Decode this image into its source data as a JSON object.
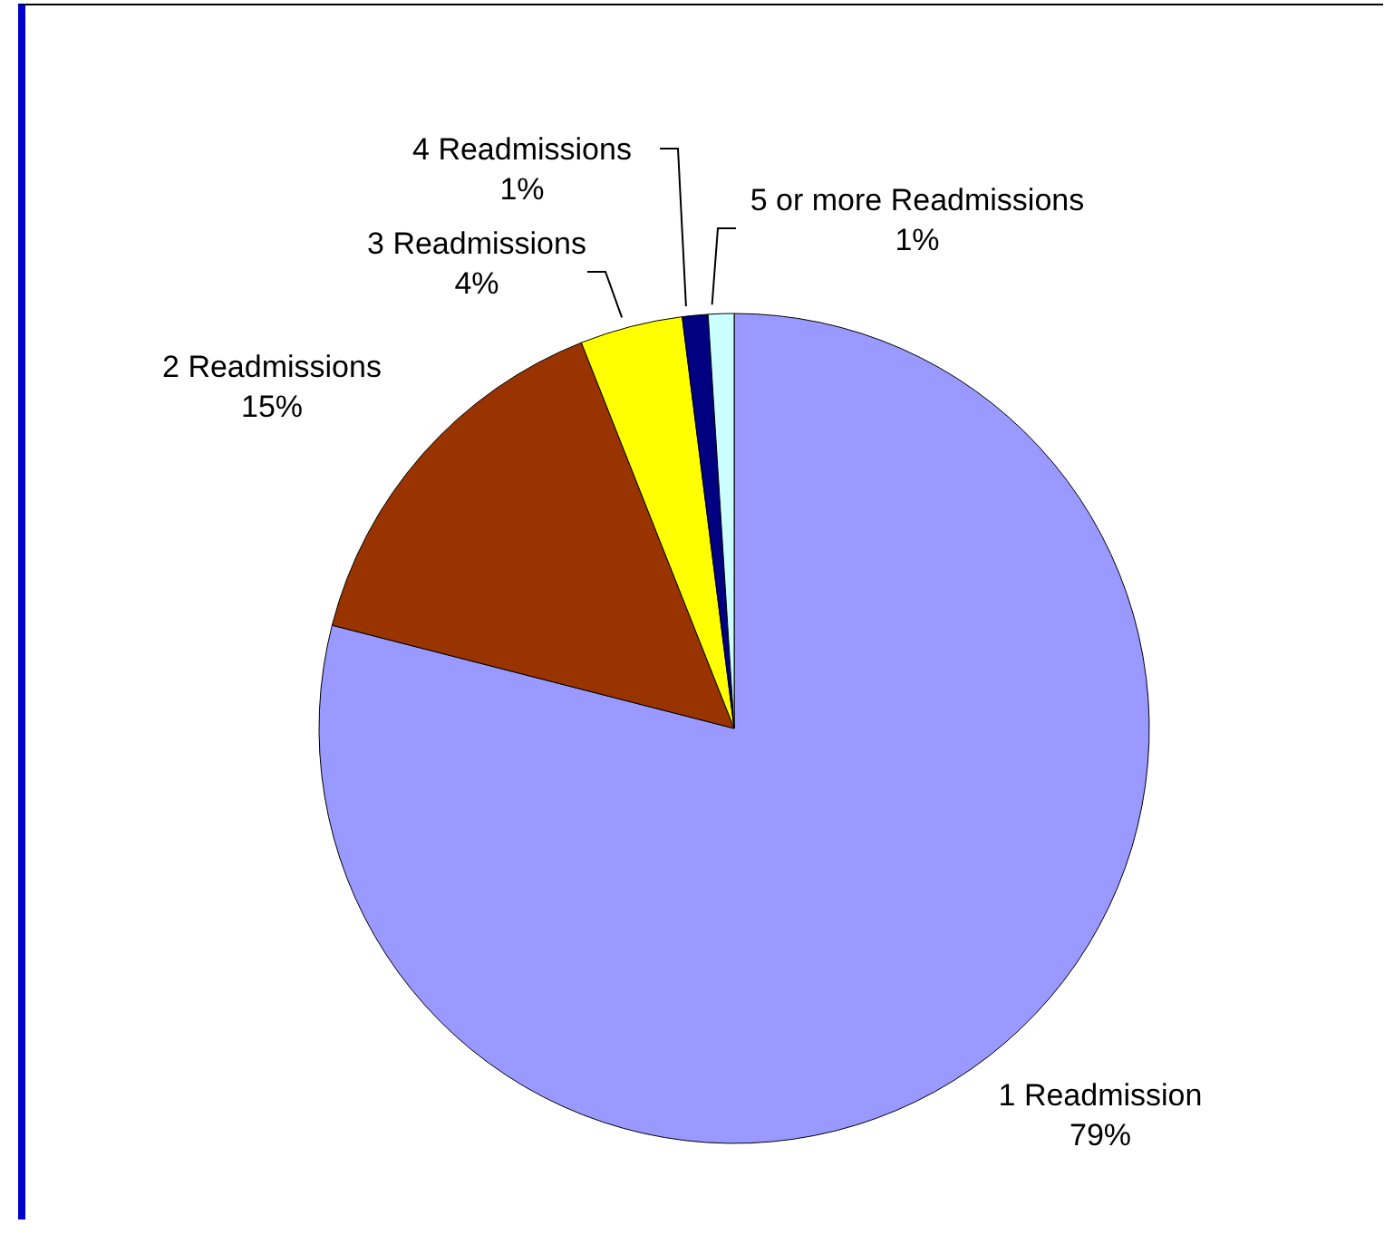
{
  "chart_data": {
    "type": "pie",
    "categories": [
      "1 Readmission",
      "2 Readmissions",
      "3 Readmissions",
      "4 Readmissions",
      "5 or more Readmissions"
    ],
    "values": [
      79,
      15,
      4,
      1,
      1
    ],
    "value_labels": [
      "79%",
      "15%",
      "4%",
      "1%",
      "1%"
    ],
    "colors": [
      "#9999ff",
      "#993300",
      "#ffff00",
      "#000080",
      "#ccffff"
    ],
    "legend": false
  }
}
